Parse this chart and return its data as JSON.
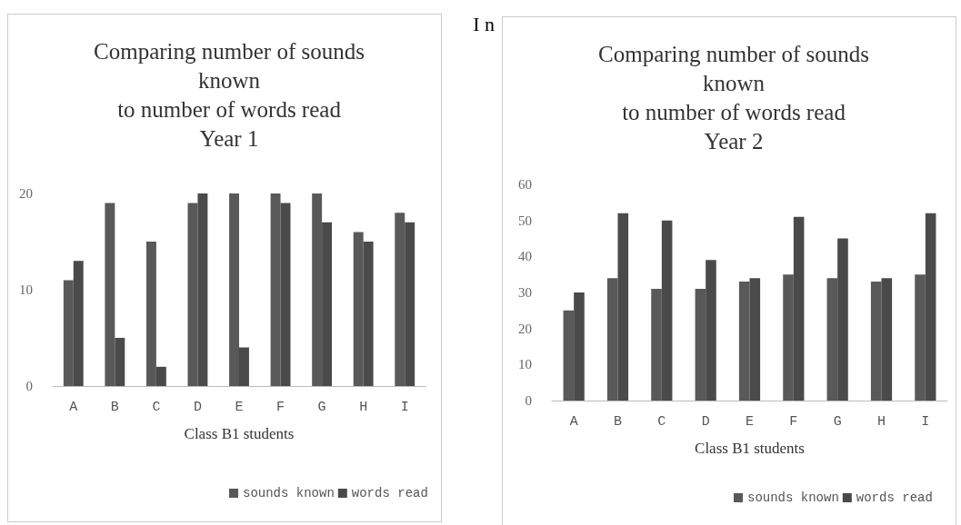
{
  "chart_data": [
    {
      "type": "bar",
      "title": "Comparing number of sounds\nknown\nto number of words read\nYear 1",
      "xlabel": "Class B1 students",
      "annotations": [
        "I n"
      ],
      "categories": [
        "A",
        "B",
        "C",
        "D",
        "E",
        "F",
        "G",
        "H",
        "I"
      ],
      "series": [
        {
          "name": "sounds known",
          "color": "#595959",
          "values": [
            11,
            19,
            15,
            19,
            20,
            20,
            20,
            16,
            18
          ]
        },
        {
          "name": "words read",
          "color": "#4a4a4a",
          "values": [
            13,
            5,
            2,
            20,
            4,
            19,
            17,
            15,
            17
          ]
        }
      ],
      "ylim": [
        0,
        20
      ],
      "yticks": [
        0,
        10,
        20
      ],
      "grid": false,
      "legend": "bottom"
    },
    {
      "type": "bar",
      "title": "Comparing number of sounds\nknown\nto number of words read\nYear 2",
      "xlabel": "Class B1 students",
      "categories": [
        "A",
        "B",
        "C",
        "D",
        "E",
        "F",
        "G",
        "H",
        "I"
      ],
      "series": [
        {
          "name": "sounds known",
          "color": "#595959",
          "values": [
            25,
            34,
            31,
            31,
            33,
            35,
            34,
            33,
            35
          ]
        },
        {
          "name": "words read",
          "color": "#4a4a4a",
          "values": [
            30,
            52,
            50,
            39,
            34,
            51,
            45,
            34,
            52
          ]
        }
      ],
      "ylim": [
        0,
        60
      ],
      "yticks": [
        0,
        10,
        20,
        30,
        40,
        50,
        60
      ],
      "grid": false,
      "legend": "bottom"
    }
  ]
}
